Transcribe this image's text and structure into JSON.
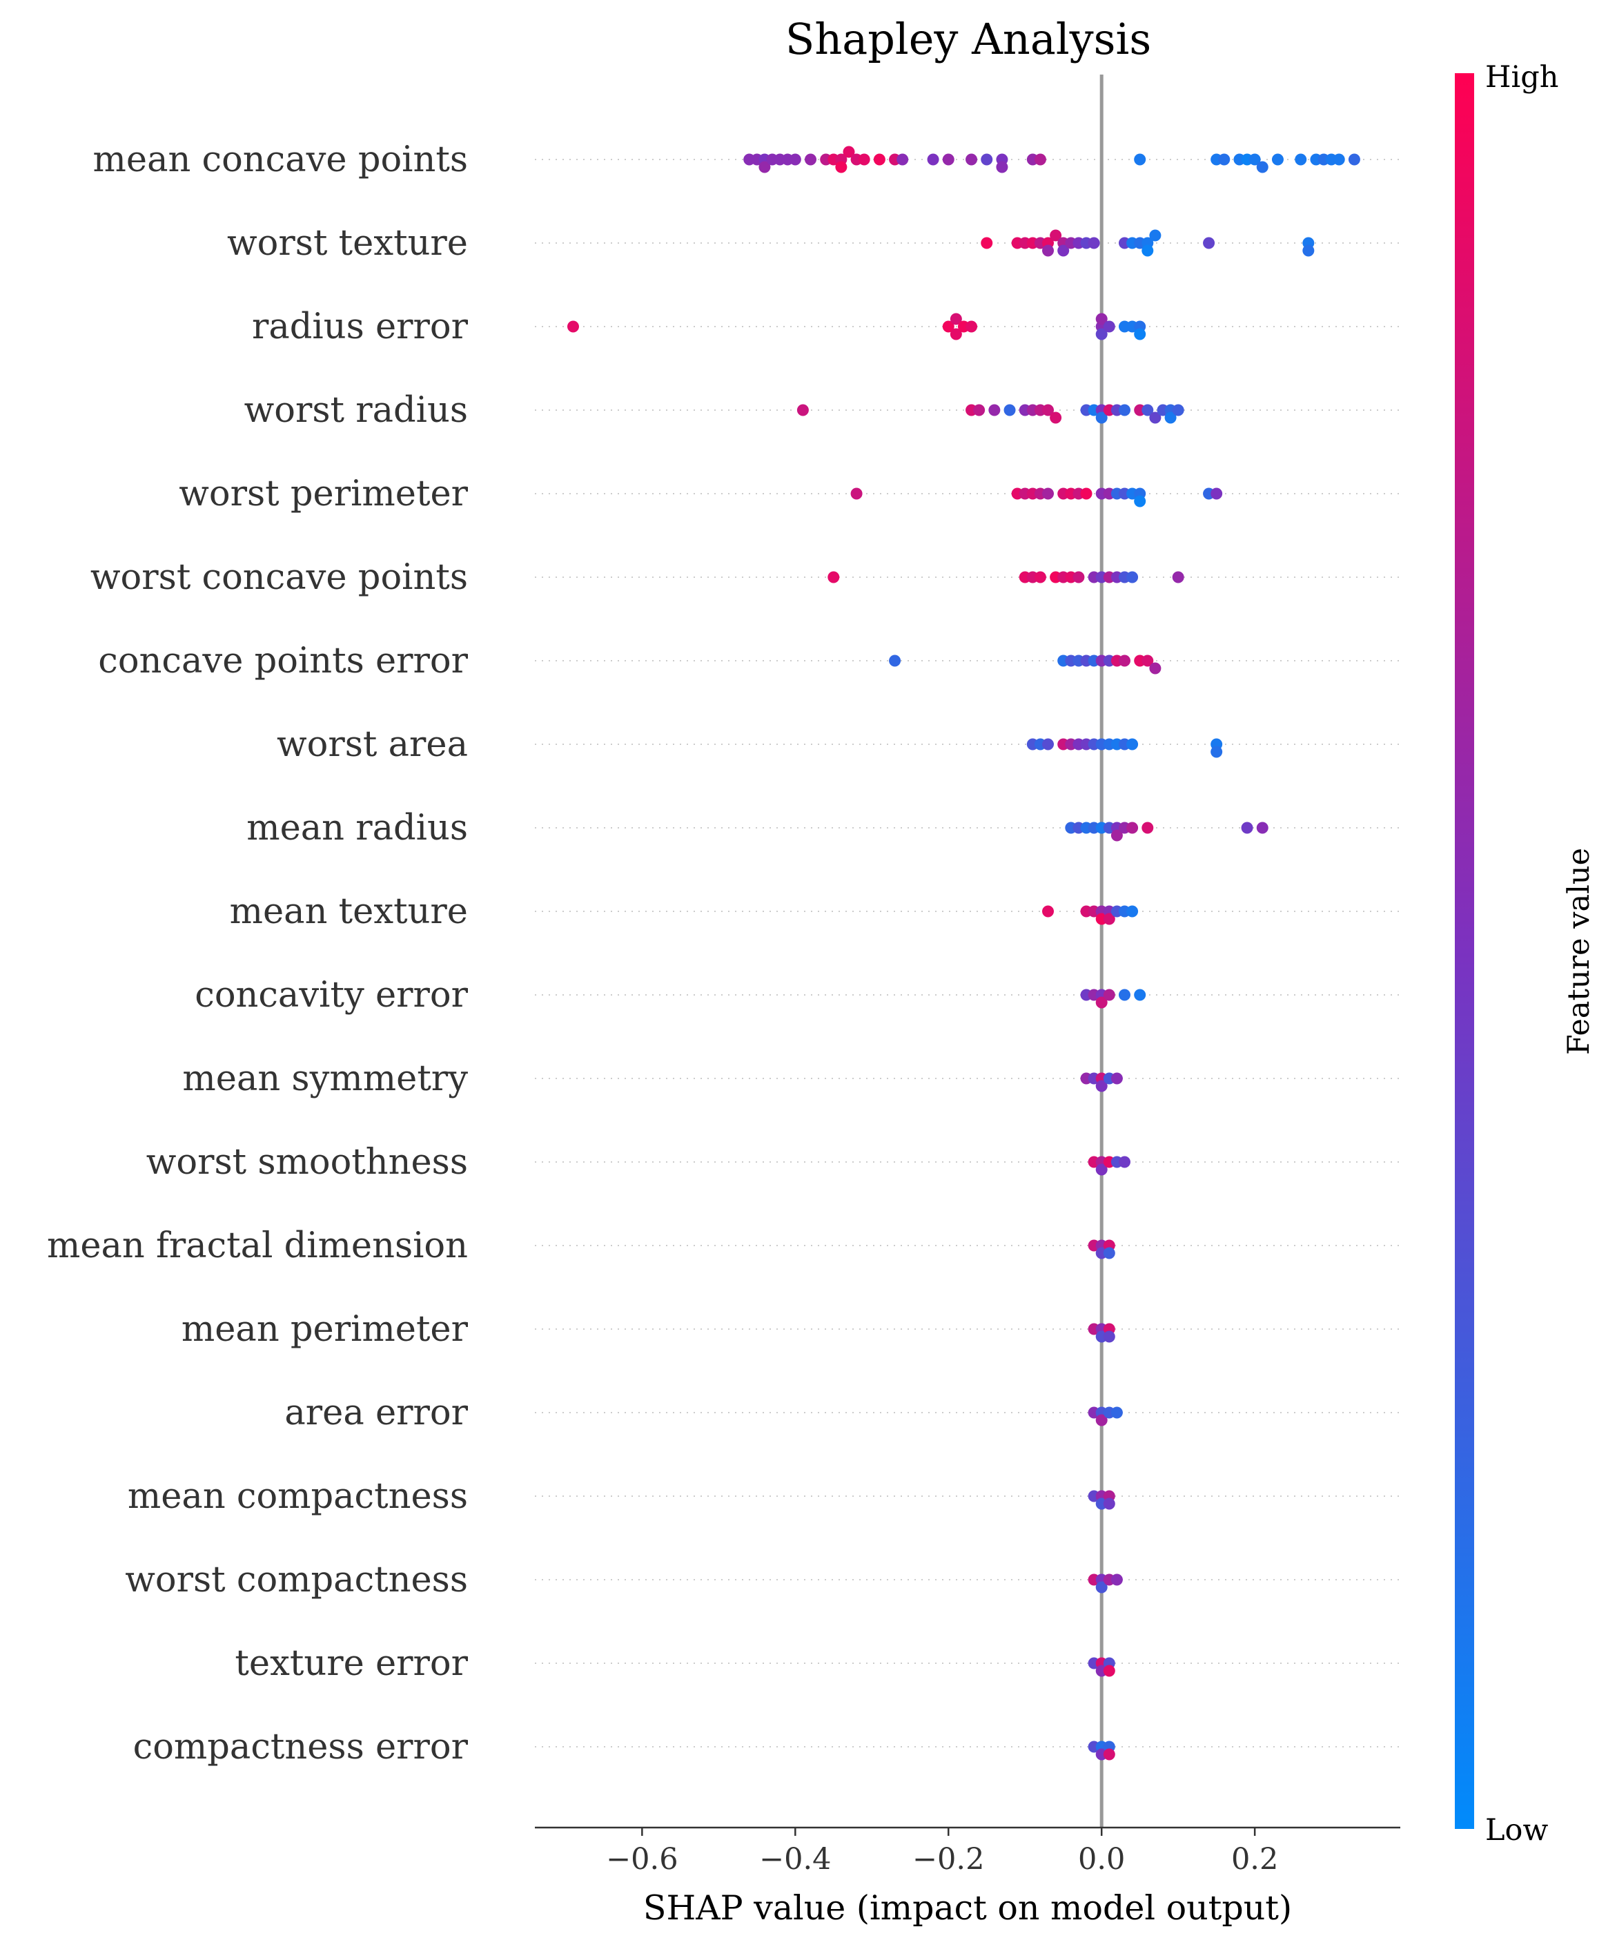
{
  "chart_data": {
    "type": "scatter",
    "title": "Shapley Analysis",
    "xlabel": "SHAP value (impact on model output)",
    "xlim": [
      -0.74,
      0.39
    ],
    "xticks": [
      -0.6,
      -0.4,
      -0.2,
      0.0,
      0.2
    ],
    "xtick_labels": [
      "−0.6",
      "−0.4",
      "−0.2",
      "0.0",
      "0.2"
    ],
    "grid": "dotted horizontal line per feature",
    "zero_line": true,
    "colorbar": {
      "label": "Feature value",
      "high_label": "High",
      "low_label": "Low",
      "low_color": "#008bfb",
      "high_color": "#ff0052"
    },
    "features": [
      {
        "name": "mean concave points",
        "points": [
          [
            -0.46,
            0.55
          ],
          [
            -0.45,
            0.55
          ],
          [
            -0.44,
            0.5
          ],
          [
            -0.44,
            0.6
          ],
          [
            -0.43,
            0.55
          ],
          [
            -0.42,
            0.55
          ],
          [
            -0.41,
            0.55
          ],
          [
            -0.4,
            0.55
          ],
          [
            -0.38,
            0.6
          ],
          [
            -0.36,
            0.75
          ],
          [
            -0.35,
            0.9
          ],
          [
            -0.34,
            0.85
          ],
          [
            -0.34,
            0.95
          ],
          [
            -0.33,
            0.9
          ],
          [
            -0.32,
            0.85
          ],
          [
            -0.31,
            0.9
          ],
          [
            -0.29,
            0.95
          ],
          [
            -0.27,
            0.85
          ],
          [
            -0.26,
            0.55
          ],
          [
            -0.22,
            0.5
          ],
          [
            -0.2,
            0.6
          ],
          [
            -0.17,
            0.6
          ],
          [
            -0.15,
            0.4
          ],
          [
            -0.13,
            0.5
          ],
          [
            -0.13,
            0.55
          ],
          [
            -0.09,
            0.6
          ],
          [
            -0.08,
            0.7
          ],
          [
            0.05,
            0.1
          ],
          [
            0.15,
            0.1
          ],
          [
            0.16,
            0.15
          ],
          [
            0.18,
            0.1
          ],
          [
            0.19,
            0.05
          ],
          [
            0.2,
            0.1
          ],
          [
            0.21,
            0.15
          ],
          [
            0.23,
            0.1
          ],
          [
            0.26,
            0.1
          ],
          [
            0.28,
            0.1
          ],
          [
            0.29,
            0.15
          ],
          [
            0.3,
            0.1
          ],
          [
            0.31,
            0.1
          ],
          [
            0.33,
            0.2
          ]
        ]
      },
      {
        "name": "worst texture",
        "points": [
          [
            -0.15,
            0.95
          ],
          [
            -0.11,
            0.9
          ],
          [
            -0.1,
            0.85
          ],
          [
            -0.09,
            0.9
          ],
          [
            -0.08,
            0.75
          ],
          [
            -0.07,
            0.9
          ],
          [
            -0.07,
            0.6
          ],
          [
            -0.06,
            0.85
          ],
          [
            -0.05,
            0.7
          ],
          [
            -0.05,
            0.5
          ],
          [
            -0.04,
            0.6
          ],
          [
            -0.03,
            0.5
          ],
          [
            -0.02,
            0.4
          ],
          [
            -0.01,
            0.45
          ],
          [
            0.03,
            0.4
          ],
          [
            0.04,
            0.1
          ],
          [
            0.05,
            0.15
          ],
          [
            0.06,
            0.1
          ],
          [
            0.06,
            0.05
          ],
          [
            0.07,
            0.1
          ],
          [
            0.14,
            0.4
          ],
          [
            0.27,
            0.1
          ],
          [
            0.27,
            0.15
          ]
        ]
      },
      {
        "name": "radius error",
        "points": [
          [
            -0.69,
            0.9
          ],
          [
            -0.2,
            0.95
          ],
          [
            -0.19,
            0.9
          ],
          [
            -0.19,
            0.85
          ],
          [
            -0.18,
            0.95
          ],
          [
            -0.17,
            0.9
          ],
          [
            0.0,
            0.55
          ],
          [
            0.0,
            0.4
          ],
          [
            0.0,
            0.6
          ],
          [
            0.01,
            0.45
          ],
          [
            0.03,
            0.1
          ],
          [
            0.04,
            0.1
          ],
          [
            0.05,
            0.15
          ],
          [
            0.05,
            0.05
          ]
        ]
      },
      {
        "name": "worst radius",
        "points": [
          [
            -0.39,
            0.8
          ],
          [
            -0.17,
            0.85
          ],
          [
            -0.16,
            0.75
          ],
          [
            -0.14,
            0.6
          ],
          [
            -0.12,
            0.2
          ],
          [
            -0.1,
            0.55
          ],
          [
            -0.09,
            0.65
          ],
          [
            -0.08,
            0.75
          ],
          [
            -0.07,
            0.8
          ],
          [
            -0.06,
            0.85
          ],
          [
            -0.02,
            0.3
          ],
          [
            -0.01,
            0.1
          ],
          [
            0.0,
            0.5
          ],
          [
            0.0,
            0.15
          ],
          [
            0.01,
            0.85
          ],
          [
            0.02,
            0.4
          ],
          [
            0.03,
            0.2
          ],
          [
            0.05,
            0.8
          ],
          [
            0.06,
            0.3
          ],
          [
            0.07,
            0.4
          ],
          [
            0.08,
            0.3
          ],
          [
            0.09,
            0.2
          ],
          [
            0.09,
            0.1
          ],
          [
            0.1,
            0.25
          ]
        ]
      },
      {
        "name": "worst perimeter",
        "points": [
          [
            -0.32,
            0.8
          ],
          [
            -0.11,
            0.9
          ],
          [
            -0.1,
            0.8
          ],
          [
            -0.09,
            0.85
          ],
          [
            -0.08,
            0.75
          ],
          [
            -0.07,
            0.65
          ],
          [
            -0.05,
            0.85
          ],
          [
            -0.04,
            0.9
          ],
          [
            -0.03,
            0.8
          ],
          [
            -0.02,
            0.95
          ],
          [
            0.0,
            0.55
          ],
          [
            0.01,
            0.6
          ],
          [
            0.02,
            0.2
          ],
          [
            0.03,
            0.3
          ],
          [
            0.04,
            0.1
          ],
          [
            0.05,
            0.15
          ],
          [
            0.05,
            0.05
          ],
          [
            0.14,
            0.2
          ],
          [
            0.15,
            0.5
          ]
        ]
      },
      {
        "name": "worst concave points",
        "points": [
          [
            -0.35,
            0.9
          ],
          [
            -0.1,
            0.9
          ],
          [
            -0.09,
            0.85
          ],
          [
            -0.08,
            0.9
          ],
          [
            -0.06,
            0.95
          ],
          [
            -0.05,
            0.85
          ],
          [
            -0.04,
            0.9
          ],
          [
            -0.03,
            0.8
          ],
          [
            -0.01,
            0.55
          ],
          [
            0.0,
            0.45
          ],
          [
            0.01,
            0.7
          ],
          [
            0.02,
            0.5
          ],
          [
            0.03,
            0.3
          ],
          [
            0.04,
            0.25
          ],
          [
            0.1,
            0.6
          ]
        ]
      },
      {
        "name": "concave points error",
        "points": [
          [
            -0.27,
            0.2
          ],
          [
            -0.05,
            0.15
          ],
          [
            -0.04,
            0.3
          ],
          [
            -0.03,
            0.25
          ],
          [
            -0.02,
            0.35
          ],
          [
            -0.01,
            0.2
          ],
          [
            0.0,
            0.55
          ],
          [
            0.01,
            0.4
          ],
          [
            0.02,
            0.85
          ],
          [
            0.03,
            0.75
          ],
          [
            0.05,
            0.9
          ],
          [
            0.06,
            0.85
          ],
          [
            0.07,
            0.65
          ]
        ]
      },
      {
        "name": "worst area",
        "points": [
          [
            -0.09,
            0.3
          ],
          [
            -0.08,
            0.2
          ],
          [
            -0.07,
            0.35
          ],
          [
            -0.05,
            0.8
          ],
          [
            -0.04,
            0.65
          ],
          [
            -0.03,
            0.5
          ],
          [
            -0.02,
            0.45
          ],
          [
            -0.01,
            0.3
          ],
          [
            0.0,
            0.2
          ],
          [
            0.01,
            0.15
          ],
          [
            0.02,
            0.1
          ],
          [
            0.03,
            0.2
          ],
          [
            0.04,
            0.1
          ],
          [
            0.15,
            0.1
          ],
          [
            0.15,
            0.15
          ]
        ]
      },
      {
        "name": "mean radius",
        "points": [
          [
            -0.04,
            0.2
          ],
          [
            -0.03,
            0.3
          ],
          [
            -0.02,
            0.15
          ],
          [
            -0.01,
            0.2
          ],
          [
            0.0,
            0.1
          ],
          [
            0.01,
            0.3
          ],
          [
            0.02,
            0.5
          ],
          [
            0.02,
            0.65
          ],
          [
            0.03,
            0.6
          ],
          [
            0.04,
            0.7
          ],
          [
            0.06,
            0.85
          ],
          [
            0.19,
            0.45
          ],
          [
            0.21,
            0.55
          ]
        ]
      },
      {
        "name": "mean texture",
        "points": [
          [
            -0.07,
            0.9
          ],
          [
            -0.02,
            0.85
          ],
          [
            -0.01,
            0.8
          ],
          [
            0.0,
            0.6
          ],
          [
            0.0,
            0.95
          ],
          [
            0.01,
            0.55
          ],
          [
            0.01,
            0.85
          ],
          [
            0.02,
            0.3
          ],
          [
            0.03,
            0.15
          ],
          [
            0.04,
            0.1
          ]
        ]
      },
      {
        "name": "concavity error",
        "points": [
          [
            -0.02,
            0.45
          ],
          [
            -0.01,
            0.6
          ],
          [
            0.0,
            0.5
          ],
          [
            0.0,
            0.8
          ],
          [
            0.01,
            0.7
          ],
          [
            0.03,
            0.15
          ],
          [
            0.05,
            0.1
          ]
        ]
      },
      {
        "name": "mean symmetry",
        "points": [
          [
            -0.02,
            0.6
          ],
          [
            -0.01,
            0.45
          ],
          [
            0.0,
            0.8
          ],
          [
            0.0,
            0.5
          ],
          [
            0.01,
            0.3
          ],
          [
            0.02,
            0.55
          ]
        ]
      },
      {
        "name": "worst smoothness",
        "points": [
          [
            -0.01,
            0.85
          ],
          [
            0.0,
            0.7
          ],
          [
            0.0,
            0.5
          ],
          [
            0.01,
            0.9
          ],
          [
            0.02,
            0.35
          ],
          [
            0.03,
            0.45
          ]
        ]
      },
      {
        "name": "mean fractal dimension",
        "points": [
          [
            -0.01,
            0.8
          ],
          [
            0.0,
            0.6
          ],
          [
            0.0,
            0.4
          ],
          [
            0.01,
            0.85
          ],
          [
            0.01,
            0.25
          ]
        ]
      },
      {
        "name": "mean perimeter",
        "points": [
          [
            -0.01,
            0.75
          ],
          [
            0.0,
            0.55
          ],
          [
            0.0,
            0.35
          ],
          [
            0.01,
            0.85
          ],
          [
            0.01,
            0.4
          ]
        ]
      },
      {
        "name": "area error",
        "points": [
          [
            -0.01,
            0.55
          ],
          [
            0.0,
            0.3
          ],
          [
            0.0,
            0.65
          ],
          [
            0.01,
            0.25
          ],
          [
            0.02,
            0.2
          ]
        ]
      },
      {
        "name": "mean compactness",
        "points": [
          [
            -0.01,
            0.4
          ],
          [
            0.0,
            0.6
          ],
          [
            0.0,
            0.3
          ],
          [
            0.01,
            0.7
          ],
          [
            0.01,
            0.45
          ]
        ]
      },
      {
        "name": "worst compactness",
        "points": [
          [
            -0.01,
            0.8
          ],
          [
            0.0,
            0.5
          ],
          [
            0.0,
            0.3
          ],
          [
            0.01,
            0.65
          ],
          [
            0.02,
            0.55
          ]
        ]
      },
      {
        "name": "texture error",
        "points": [
          [
            -0.01,
            0.4
          ],
          [
            0.0,
            0.85
          ],
          [
            0.0,
            0.55
          ],
          [
            0.01,
            0.35
          ],
          [
            0.01,
            0.9
          ]
        ]
      },
      {
        "name": "compactness error",
        "points": [
          [
            -0.01,
            0.35
          ],
          [
            0.0,
            0.15
          ],
          [
            0.0,
            0.5
          ],
          [
            0.01,
            0.2
          ],
          [
            0.01,
            0.85
          ]
        ]
      }
    ]
  }
}
